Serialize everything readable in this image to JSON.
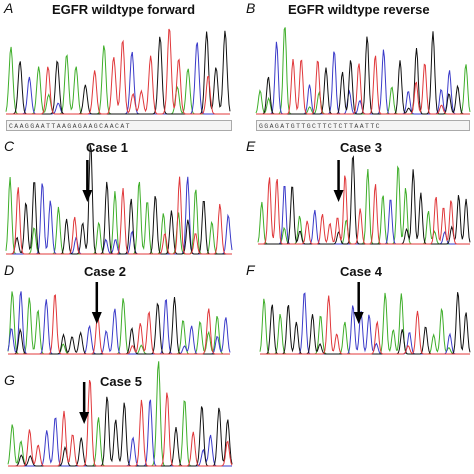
{
  "colors": {
    "A": "#3fae2a",
    "C": "#3b3bc9",
    "G": "#111111",
    "T": "#e0383b"
  },
  "panels": [
    {
      "letter": "A",
      "title": "EGFR wildtype forward",
      "seq": "CAAGGAATTAAGAGAAGCAACAT",
      "arrow": false
    },
    {
      "letter": "B",
      "title": "EGFR wildtype reverse",
      "seq": "GGAGATGTTGCTTCTCTTAATTC",
      "arrow": false
    },
    {
      "letter": "C",
      "title": "Case 1",
      "arrow": true
    },
    {
      "letter": "E",
      "title": "Case 3",
      "arrow": true
    },
    {
      "letter": "D",
      "title": "Case 2",
      "arrow": true
    },
    {
      "letter": "F",
      "title": "Case 4",
      "arrow": true
    },
    {
      "letter": "G",
      "title": "Case 5",
      "arrow": true
    }
  ]
}
